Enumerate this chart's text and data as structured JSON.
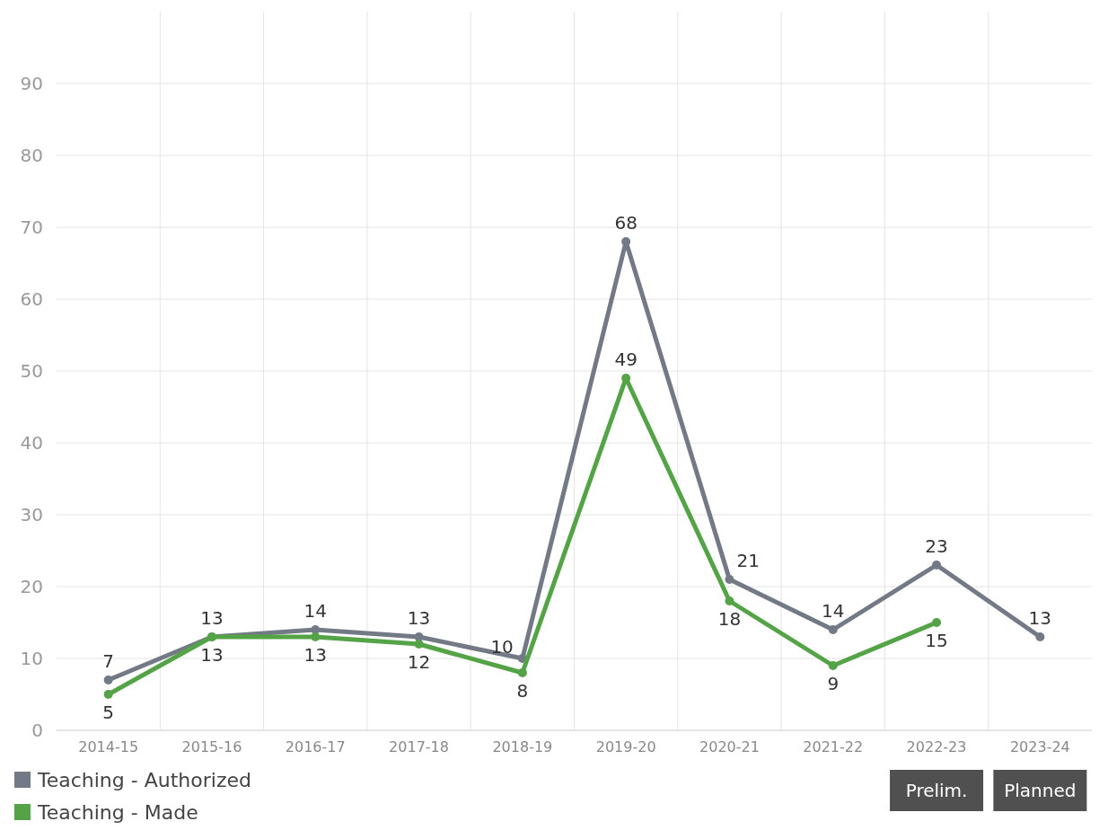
{
  "chart_data": {
    "type": "line",
    "categories": [
      "2014-15",
      "2015-16",
      "2016-17",
      "2017-18",
      "2018-19",
      "2019-20",
      "2020-21",
      "2021-22",
      "2022-23",
      "2023-24"
    ],
    "series": [
      {
        "name": "Teaching - Authorized",
        "color": "#737a86",
        "values": [
          7,
          13,
          14,
          13,
          10,
          68,
          21,
          14,
          23,
          13
        ]
      },
      {
        "name": "Teaching - Made",
        "color": "#55a347",
        "values": [
          5,
          13,
          13,
          12,
          8,
          49,
          18,
          9,
          15,
          null
        ]
      }
    ],
    "ylim": [
      0,
      100
    ],
    "yticks": [
      0,
      10,
      20,
      30,
      40,
      50,
      60,
      70,
      80,
      90
    ],
    "grid": true,
    "legend": "bottom left",
    "marker": "circle",
    "line_style": "solid",
    "data_labels": true,
    "annotations": [
      "Prelim.",
      "Planned"
    ]
  }
}
